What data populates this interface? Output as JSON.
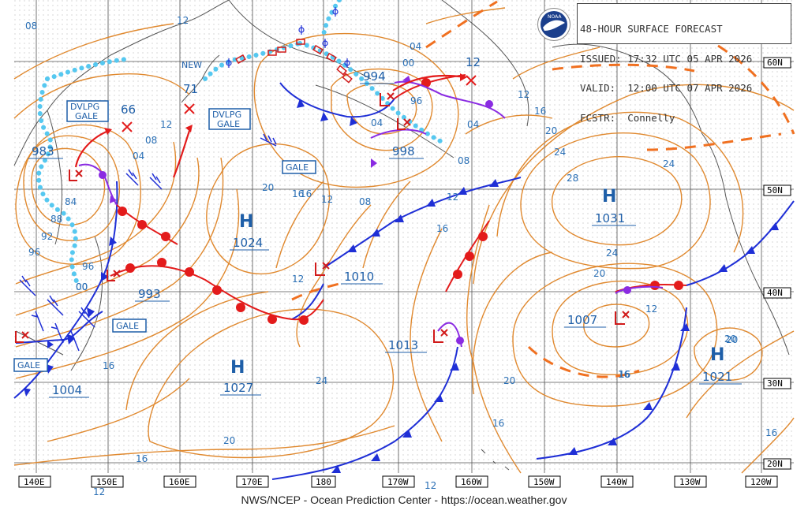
{
  "header": {
    "title": "48-HOUR SURFACE FORECAST",
    "issued": "ISSUED: 17:32 UTC 05 APR 2026",
    "valid": "VALID:  12:00 UTC 07 APR 2026",
    "forecaster": "FCSTR:  Connelly",
    "logo_text": "NOAA"
  },
  "footer": "NWS/NCEP - Ocean Prediction Center - https://ocean.weather.gov",
  "lat_labels": [
    "60N",
    "50N",
    "40N",
    "30N",
    "20N"
  ],
  "lon_labels": [
    "140E",
    "150E",
    "160E",
    "170E",
    "180",
    "170W",
    "160W",
    "150W",
    "140W",
    "130W",
    "120W"
  ],
  "highs": [
    {
      "symbol": "H",
      "value": "1024"
    },
    {
      "symbol": "H",
      "value": "1031"
    },
    {
      "symbol": "H",
      "value": "1027"
    },
    {
      "symbol": "H",
      "value": "1021"
    }
  ],
  "lows": [
    {
      "value": "983"
    },
    {
      "value": "993"
    },
    {
      "value": "1004"
    },
    {
      "value": "994"
    },
    {
      "value": "998"
    },
    {
      "value": "1010"
    },
    {
      "value": "1013"
    },
    {
      "value": "1007"
    }
  ],
  "forecast_positions": [
    {
      "value": "66"
    },
    {
      "value": "71"
    },
    {
      "value": "12"
    }
  ],
  "warnings": [
    "DVLPG GALE",
    "DVLPG GALE",
    "GALE",
    "GALE",
    "GALE"
  ],
  "misc_text": {
    "new": "NEW"
  },
  "isobar_labels": [
    "08",
    "12",
    "04",
    "12",
    "08",
    "00",
    "12",
    "04",
    "96",
    "16",
    "20",
    "24",
    "28",
    "24",
    "20",
    "16",
    "20",
    "24",
    "20",
    "16",
    "20",
    "12",
    "16",
    "08",
    "12",
    "16",
    "20",
    "16",
    "12",
    "08",
    "04",
    "00",
    "96",
    "92",
    "88",
    "84",
    "00",
    "96",
    "16",
    "16",
    "12",
    "12",
    "04",
    "16",
    "24",
    "20",
    "16",
    "12"
  ],
  "colors": {
    "isobar": "#e0892f",
    "isobar_label": "#2a6fb5",
    "cold_front": "#1f2fd6",
    "warm_front": "#e31b1b",
    "occluded_front": "#8a2be2",
    "ice_edge": "#56c8f0",
    "low_symbol": "#d11a1a",
    "ridge": "#f07020",
    "grid": "#222222"
  }
}
